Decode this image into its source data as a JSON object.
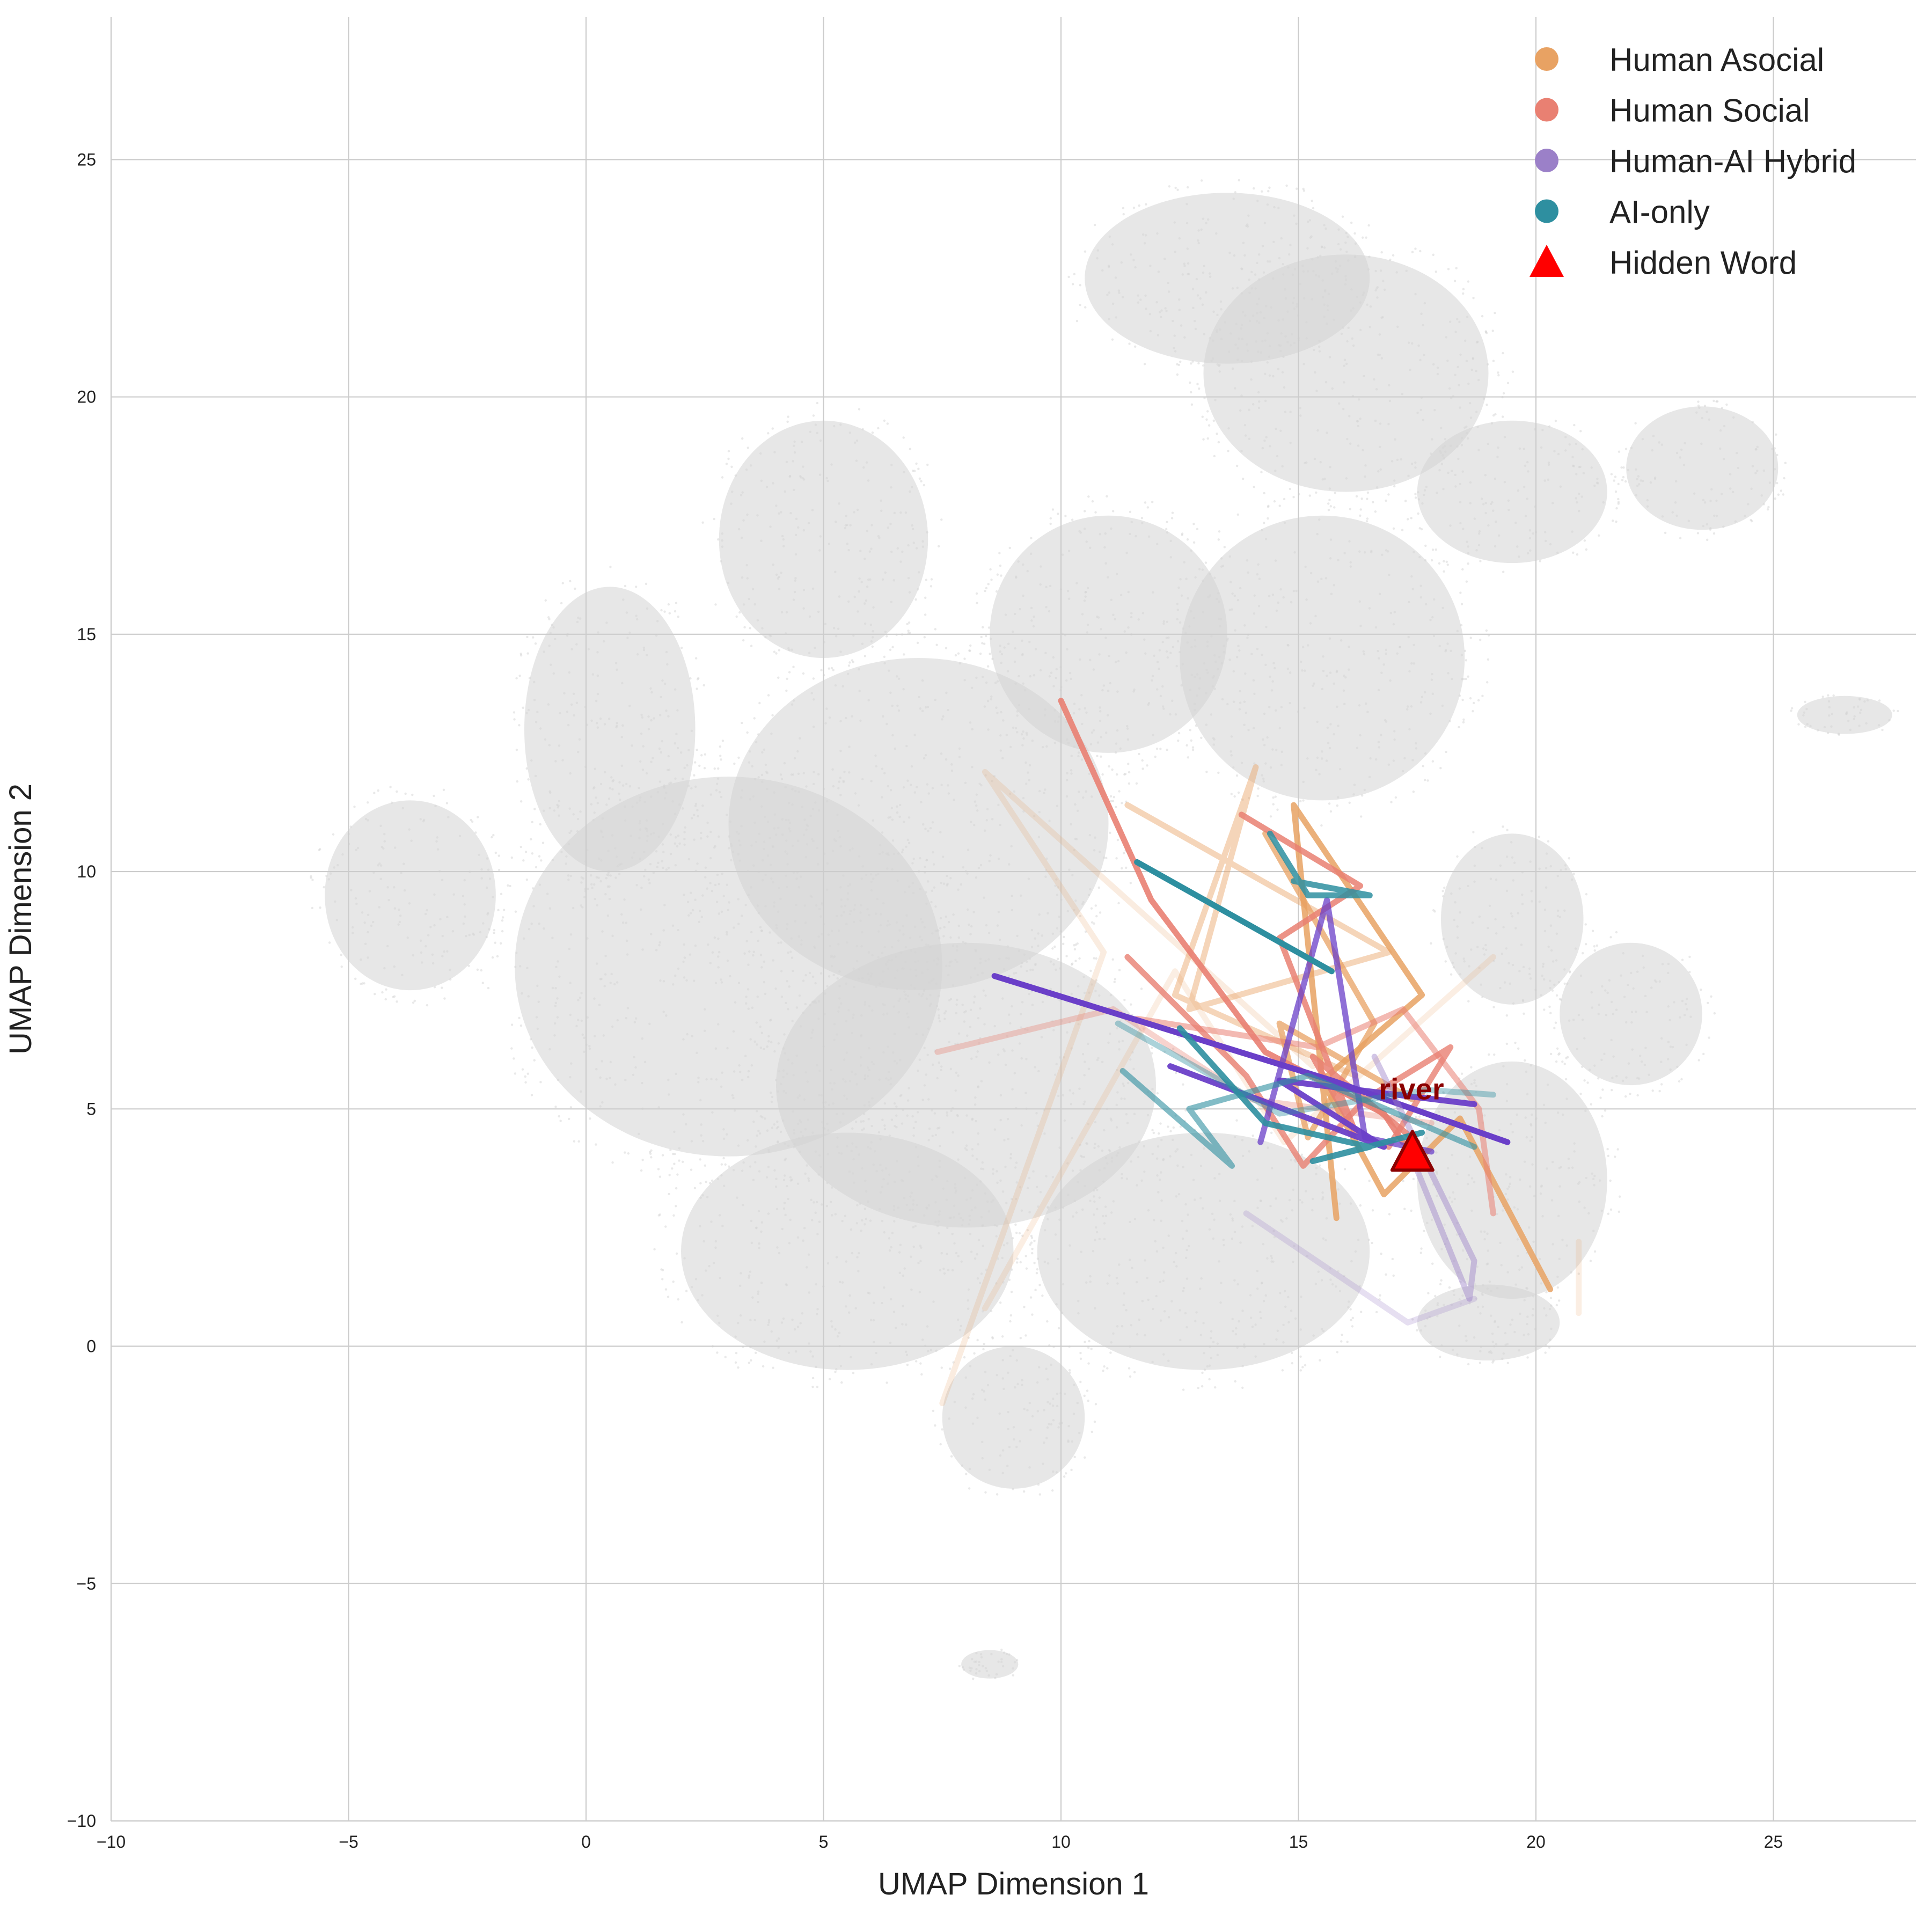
{
  "chart_data": {
    "type": "line",
    "xlabel": "UMAP Dimension 1",
    "ylabel": "UMAP Dimension 2",
    "xlim": [
      -10,
      28
    ],
    "ylim": [
      -10,
      28
    ],
    "x_ticks": [
      -10,
      -5,
      0,
      5,
      10,
      15,
      20,
      25
    ],
    "y_ticks": [
      -10,
      -5,
      0,
      5,
      10,
      15,
      20,
      25
    ],
    "x_tick_labels": [
      "−10",
      "−5",
      "0",
      "5",
      "10",
      "15",
      "20",
      "25"
    ],
    "y_tick_labels": [
      "−10",
      "−5",
      "0",
      "5",
      "10",
      "15",
      "20",
      "25"
    ],
    "grid": true,
    "legend_placement": "top-right",
    "colors": {
      "human_asocial": "#e8a263",
      "human_social": "#e98072",
      "human_ai_hybrid": "#9b80c8",
      "ai_only": "#2e8fa0",
      "hidden_word": "#ff0000",
      "background_points": "#d3d3d3"
    },
    "legend": [
      {
        "label": "Human Asocial",
        "marker": "circle",
        "color": "#e8a263"
      },
      {
        "label": "Human Social",
        "marker": "circle",
        "color": "#e98072"
      },
      {
        "label": "Human-AI Hybrid",
        "marker": "circle",
        "color": "#9b80c8"
      },
      {
        "label": "AI-only",
        "marker": "circle",
        "color": "#2e8fa0"
      },
      {
        "label": "Hidden Word",
        "marker": "triangle",
        "color": "#ff0000"
      }
    ],
    "background_regions": [
      {
        "x": 3,
        "y": 8,
        "rx": 4.5,
        "ry": 4
      },
      {
        "x": 7,
        "y": 11,
        "rx": 4,
        "ry": 3.5
      },
      {
        "x": 0.5,
        "y": 13,
        "rx": 1.8,
        "ry": 3
      },
      {
        "x": -3.7,
        "y": 9.5,
        "rx": 1.8,
        "ry": 2
      },
      {
        "x": 5,
        "y": 17,
        "rx": 2.2,
        "ry": 2.5
      },
      {
        "x": 8,
        "y": 5.5,
        "rx": 4,
        "ry": 3
      },
      {
        "x": 5.5,
        "y": 2,
        "rx": 3.5,
        "ry": 2.5
      },
      {
        "x": 9,
        "y": -1.5,
        "rx": 1.5,
        "ry": 1.5
      },
      {
        "x": 13,
        "y": 2,
        "rx": 3.5,
        "ry": 2.5
      },
      {
        "x": 13.5,
        "y": 22.5,
        "rx": 3,
        "ry": 1.8
      },
      {
        "x": 16,
        "y": 20.5,
        "rx": 3,
        "ry": 2.5
      },
      {
        "x": 15.5,
        "y": 14.5,
        "rx": 3,
        "ry": 3
      },
      {
        "x": 11,
        "y": 15,
        "rx": 2.5,
        "ry": 2.5
      },
      {
        "x": 19.5,
        "y": 18,
        "rx": 2,
        "ry": 1.5
      },
      {
        "x": 23.5,
        "y": 18.5,
        "rx": 1.6,
        "ry": 1.3
      },
      {
        "x": 19.5,
        "y": 9,
        "rx": 1.5,
        "ry": 1.8
      },
      {
        "x": 19.5,
        "y": 3.5,
        "rx": 2,
        "ry": 2.5
      },
      {
        "x": 19,
        "y": 0.5,
        "rx": 1.5,
        "ry": 0.8
      },
      {
        "x": 22,
        "y": 7,
        "rx": 1.5,
        "ry": 1.5
      },
      {
        "x": 26.5,
        "y": 13.3,
        "rx": 1,
        "ry": 0.4
      },
      {
        "x": 8.5,
        "y": -6.7,
        "rx": 0.6,
        "ry": 0.3
      }
    ],
    "series": [
      {
        "name": "Human Asocial",
        "color": "#e8a263",
        "paths": [
          {
            "opacity": 0.85,
            "points": [
              [
                15.8,
                2.7
              ],
              [
                14.9,
                11.4
              ],
              [
                17.6,
                7.4
              ],
              [
                15.5,
                5.6
              ],
              [
                16.8,
                3.2
              ],
              [
                18.4,
                4.8
              ],
              [
                20.3,
                1.2
              ]
            ]
          },
          {
            "opacity": 0.75,
            "points": [
              [
                14.3,
                10.8
              ],
              [
                16.6,
                6.8
              ],
              [
                15.2,
                4.4
              ],
              [
                14.6,
                6.8
              ],
              [
                17.4,
                5.2
              ]
            ]
          },
          {
            "opacity": 0.45,
            "points": [
              [
                11.4,
                11.4
              ],
              [
                16.9,
                8.3
              ],
              [
                12.7,
                7.1
              ],
              [
                14.1,
                12.2
              ],
              [
                12.4,
                7.4
              ],
              [
                16.2,
                5.7
              ]
            ]
          },
          {
            "opacity": 0.2,
            "points": [
              [
                7.5,
                -1.2
              ],
              [
                10.9,
                8.3
              ],
              [
                8.4,
                12.1
              ],
              [
                15.3,
                5.9
              ]
            ]
          },
          {
            "opacity": 0.18,
            "points": [
              [
                8.4,
                0.8
              ],
              [
                12.4,
                7.9
              ],
              [
                14.7,
                4.3
              ],
              [
                19.1,
                8.2
              ]
            ]
          },
          {
            "opacity": 0.18,
            "points": [
              [
                20.9,
                0.7
              ],
              [
                20.9,
                2.2
              ]
            ]
          }
        ]
      },
      {
        "name": "Human Social",
        "color": "#e98072",
        "paths": [
          {
            "opacity": 0.9,
            "points": [
              [
                10.0,
                13.6
              ],
              [
                11.9,
                9.4
              ],
              [
                14.3,
                6.2
              ],
              [
                16.8,
                4.9
              ],
              [
                17.2,
                4.3
              ]
            ]
          },
          {
            "opacity": 0.85,
            "points": [
              [
                13.8,
                11.2
              ],
              [
                16.3,
                9.7
              ],
              [
                14.6,
                8.6
              ],
              [
                16.2,
                4.5
              ],
              [
                15.3,
                6.1
              ],
              [
                17.5,
                4.3
              ]
            ]
          },
          {
            "opacity": 0.8,
            "points": [
              [
                11.4,
                8.2
              ],
              [
                13.9,
                5.7
              ],
              [
                15.1,
                3.8
              ],
              [
                16.4,
                5.2
              ],
              [
                18.2,
                6.3
              ],
              [
                16.9,
                4.2
              ]
            ]
          },
          {
            "opacity": 0.55,
            "points": [
              [
                11.6,
                6.9
              ],
              [
                15.4,
                6.3
              ],
              [
                17.2,
                7.1
              ],
              [
                18.8,
                5.0
              ],
              [
                19.1,
                2.8
              ]
            ]
          },
          {
            "opacity": 0.35,
            "points": [
              [
                7.4,
                6.2
              ],
              [
                11.1,
                7.1
              ],
              [
                14.0,
                5.2
              ],
              [
                17.8,
                4.7
              ]
            ]
          }
        ]
      },
      {
        "name": "Human-AI Hybrid",
        "color": "#9b80c8",
        "paths": [
          {
            "opacity": 1.0,
            "color": "#6a3fc8",
            "points": [
              [
                8.6,
                7.8
              ],
              [
                15.7,
                5.6
              ],
              [
                19.4,
                4.3
              ]
            ]
          },
          {
            "opacity": 0.95,
            "color": "#6a3fc8",
            "points": [
              [
                12.3,
                5.9
              ],
              [
                16.8,
                4.2
              ],
              [
                14.6,
                5.6
              ],
              [
                18.7,
                5.1
              ]
            ]
          },
          {
            "opacity": 0.75,
            "color": "#6a3fc8",
            "points": [
              [
                14.2,
                4.3
              ],
              [
                15.6,
                9.4
              ],
              [
                16.4,
                4.4
              ],
              [
                17.8,
                4.1
              ]
            ]
          },
          {
            "opacity": 0.45,
            "points": [
              [
                16.6,
                6.1
              ],
              [
                18.7,
                1.8
              ],
              [
                18.6,
                1.0
              ],
              [
                17.3,
                4.2
              ]
            ]
          },
          {
            "opacity": 0.25,
            "points": [
              [
                13.9,
                2.8
              ],
              [
                17.3,
                0.5
              ],
              [
                18.7,
                1.0
              ]
            ]
          }
        ]
      },
      {
        "name": "AI-only",
        "color": "#2e8fa0",
        "paths": [
          {
            "opacity": 1.0,
            "points": [
              [
                11.6,
                10.2
              ],
              [
                15.7,
                7.9
              ]
            ]
          },
          {
            "opacity": 0.9,
            "points": [
              [
                12.5,
                6.7
              ],
              [
                14.3,
                4.7
              ],
              [
                16.5,
                4.2
              ],
              [
                15.3,
                3.9
              ],
              [
                17.6,
                4.5
              ]
            ]
          },
          {
            "opacity": 0.85,
            "points": [
              [
                14.4,
                10.8
              ],
              [
                15.2,
                9.5
              ],
              [
                16.5,
                9.5
              ],
              [
                14.9,
                9.8
              ]
            ]
          },
          {
            "opacity": 0.6,
            "points": [
              [
                11.3,
                5.8
              ],
              [
                13.6,
                3.8
              ],
              [
                12.7,
                5.0
              ],
              [
                15.2,
                5.7
              ],
              [
                18.7,
                4.2
              ]
            ]
          },
          {
            "opacity": 0.4,
            "points": [
              [
                11.2,
                6.8
              ],
              [
                14.6,
                4.9
              ],
              [
                17.7,
                5.4
              ],
              [
                19.1,
                5.3
              ]
            ]
          }
        ]
      }
    ],
    "hidden_word": {
      "label": "river",
      "x": 17.4,
      "y": 4.05,
      "color": "#ff0000"
    }
  }
}
